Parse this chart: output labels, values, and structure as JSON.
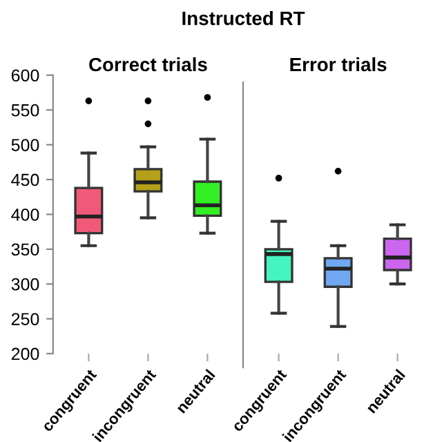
{
  "chart_data": [
    {
      "type": "box",
      "title": "Correct trials",
      "annotations": [
        "Instructed RT"
      ],
      "categories": [
        "congruent",
        "incongruent",
        "neutral"
      ],
      "colors": [
        "#f05a78",
        "#b5a118",
        "#33ee22"
      ],
      "ylim": [
        200,
        600
      ],
      "yticks": [
        200,
        250,
        300,
        350,
        400,
        450,
        500,
        550,
        600
      ],
      "grid": false,
      "legend": false,
      "boxes": [
        {
          "low": 355,
          "q1": 373,
          "median": 397,
          "q3": 438,
          "high": 488,
          "outliers": [
            563
          ]
        },
        {
          "low": 395,
          "q1": 433,
          "median": 446,
          "q3": 465,
          "high": 497,
          "outliers": [
            530,
            563
          ]
        },
        {
          "low": 373,
          "q1": 398,
          "median": 413,
          "q3": 447,
          "high": 508,
          "outliers": [
            568
          ]
        }
      ]
    },
    {
      "type": "box",
      "title": "Error trials",
      "categories": [
        "congruent",
        "incongruent",
        "neutral"
      ],
      "colors": [
        "#44f5c0",
        "#6fa8f0",
        "#cc66ee"
      ],
      "ylim": [
        200,
        600
      ],
      "tick_labels": "x",
      "grid": false,
      "legend": false,
      "boxes": [
        {
          "low": 258,
          "q1": 303,
          "median": 343,
          "q3": 350,
          "high": 390,
          "outliers": [
            452
          ]
        },
        {
          "low": 239,
          "q1": 296,
          "median": 322,
          "q3": 337,
          "high": 355,
          "outliers": [
            462
          ]
        },
        {
          "low": 300,
          "q1": 320,
          "median": 338,
          "q3": 365,
          "high": 385
        }
      ]
    }
  ]
}
